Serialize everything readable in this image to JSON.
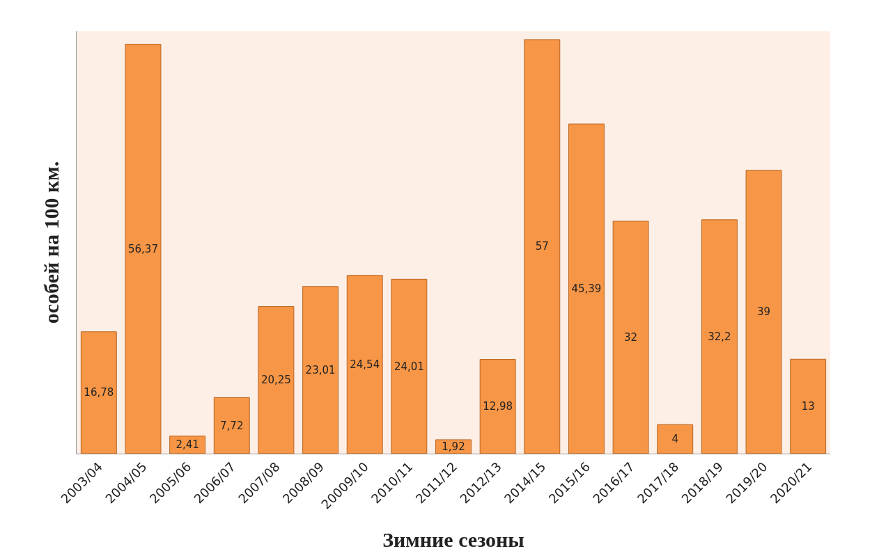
{
  "chart_data": {
    "type": "bar",
    "xlabel": "Зимние сезоны",
    "ylabel": "особей на 100 км.",
    "categories": [
      "2003/04",
      "2004/05",
      "2005/06",
      "2006/07",
      "2007/08",
      "2008/09",
      "20009/10",
      "2010/11",
      "2011/12",
      "2012/13",
      "2014/15",
      "2015/16",
      "2016/17",
      "2017/18",
      "2018/19",
      "2019/20",
      "2020/21"
    ],
    "values": [
      16.78,
      56.37,
      2.41,
      7.72,
      20.25,
      23.01,
      24.54,
      24.01,
      1.92,
      12.98,
      57,
      45.39,
      32,
      4,
      32.2,
      39,
      13
    ],
    "value_labels": [
      "16,78",
      "56,37",
      "2,41",
      "7,72",
      "20,25",
      "23,01",
      "24,54",
      "24,01",
      "1,92",
      "12,98",
      "57",
      "45,39",
      "32",
      "4",
      "32,2",
      "39",
      "13"
    ],
    "color": "#f79646",
    "grid": false,
    "legend": false
  }
}
